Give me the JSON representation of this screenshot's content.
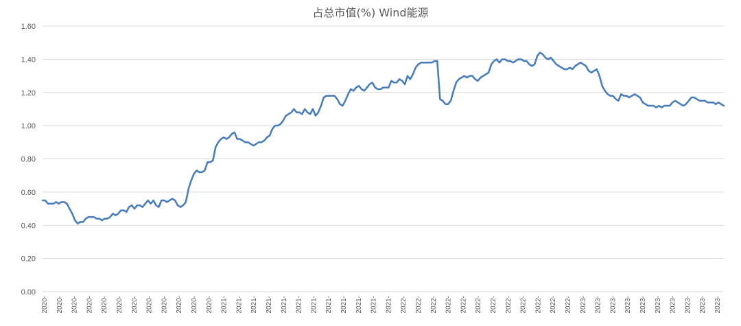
{
  "chart_data": {
    "type": "line",
    "title": "占总市值(%) Wind能源",
    "xlabel": "",
    "ylabel": "",
    "ylim": [
      0,
      1.6
    ],
    "yticks": [
      "0.00",
      "0.20",
      "0.40",
      "0.60",
      "0.80",
      "1.00",
      "1.20",
      "1.40",
      "1.60"
    ],
    "xticks": [
      "2020-",
      "2020-",
      "2020-",
      "2020-",
      "2020-",
      "2020-",
      "2020-",
      "2020-",
      "2020-",
      "2020-",
      "2020-",
      "2020-",
      "2021-",
      "2021-",
      "2021-",
      "2021-",
      "2021-",
      "2021-",
      "2021-",
      "2021-",
      "2021-",
      "2021-",
      "2021-",
      "2021-",
      "2022-",
      "2022-",
      "2022-",
      "2022-",
      "2022-",
      "2022-",
      "2022-",
      "2022-",
      "2022-",
      "2022-",
      "2022-",
      "2022-",
      "2023-",
      "2023-",
      "2023-",
      "2023-",
      "2023-",
      "2023-",
      "2023-",
      "2023-",
      "2023-",
      "2023-"
    ],
    "grid": true,
    "legend": "none",
    "line_color": "#4a7ebb",
    "series": [
      {
        "values": [
          0.55,
          0.55,
          0.53,
          0.53,
          0.53,
          0.54,
          0.53,
          0.54,
          0.54,
          0.53,
          0.5,
          0.47,
          0.43,
          0.41,
          0.42,
          0.42,
          0.44,
          0.45,
          0.45,
          0.45,
          0.44,
          0.44,
          0.43,
          0.44,
          0.44,
          0.45,
          0.47,
          0.46,
          0.47,
          0.49,
          0.49,
          0.48,
          0.51,
          0.52,
          0.5,
          0.52,
          0.52,
          0.51,
          0.53,
          0.55,
          0.53,
          0.55,
          0.52,
          0.51,
          0.55,
          0.55,
          0.54,
          0.55,
          0.56,
          0.55,
          0.52,
          0.51,
          0.52,
          0.54,
          0.62,
          0.67,
          0.71,
          0.73,
          0.72,
          0.72,
          0.73,
          0.78,
          0.78,
          0.79,
          0.87,
          0.9,
          0.92,
          0.93,
          0.92,
          0.93,
          0.95,
          0.96,
          0.92,
          0.92,
          0.91,
          0.9,
          0.9,
          0.89,
          0.88,
          0.89,
          0.9,
          0.9,
          0.91,
          0.93,
          0.94,
          0.98,
          1.0,
          1.0,
          1.01,
          1.03,
          1.06,
          1.07,
          1.08,
          1.1,
          1.08,
          1.08,
          1.07,
          1.1,
          1.08,
          1.07,
          1.1,
          1.06,
          1.08,
          1.12,
          1.17,
          1.18,
          1.18,
          1.18,
          1.18,
          1.16,
          1.13,
          1.12,
          1.15,
          1.19,
          1.22,
          1.21,
          1.23,
          1.24,
          1.22,
          1.21,
          1.23,
          1.25,
          1.26,
          1.23,
          1.22,
          1.22,
          1.23,
          1.23,
          1.23,
          1.27,
          1.26,
          1.26,
          1.28,
          1.27,
          1.25,
          1.3,
          1.28,
          1.31,
          1.35,
          1.37,
          1.38,
          1.38,
          1.38,
          1.38,
          1.38,
          1.39,
          1.39,
          1.16,
          1.15,
          1.13,
          1.13,
          1.15,
          1.21,
          1.26,
          1.28,
          1.29,
          1.3,
          1.29,
          1.3,
          1.3,
          1.28,
          1.27,
          1.29,
          1.3,
          1.31,
          1.32,
          1.37,
          1.39,
          1.4,
          1.38,
          1.4,
          1.4,
          1.39,
          1.39,
          1.38,
          1.39,
          1.4,
          1.4,
          1.39,
          1.39,
          1.37,
          1.36,
          1.37,
          1.42,
          1.44,
          1.43,
          1.41,
          1.4,
          1.41,
          1.39,
          1.37,
          1.36,
          1.35,
          1.34,
          1.34,
          1.35,
          1.34,
          1.36,
          1.37,
          1.38,
          1.37,
          1.36,
          1.33,
          1.32,
          1.33,
          1.34,
          1.3,
          1.24,
          1.21,
          1.19,
          1.18,
          1.18,
          1.16,
          1.15,
          1.19,
          1.18,
          1.18,
          1.17,
          1.18,
          1.19,
          1.18,
          1.17,
          1.14,
          1.13,
          1.12,
          1.12,
          1.12,
          1.11,
          1.12,
          1.11,
          1.12,
          1.12,
          1.12,
          1.14,
          1.15,
          1.14,
          1.13,
          1.12,
          1.13,
          1.15,
          1.17,
          1.17,
          1.16,
          1.15,
          1.15,
          1.15,
          1.14,
          1.14,
          1.14,
          1.13,
          1.14,
          1.13,
          1.12
        ]
      }
    ]
  }
}
